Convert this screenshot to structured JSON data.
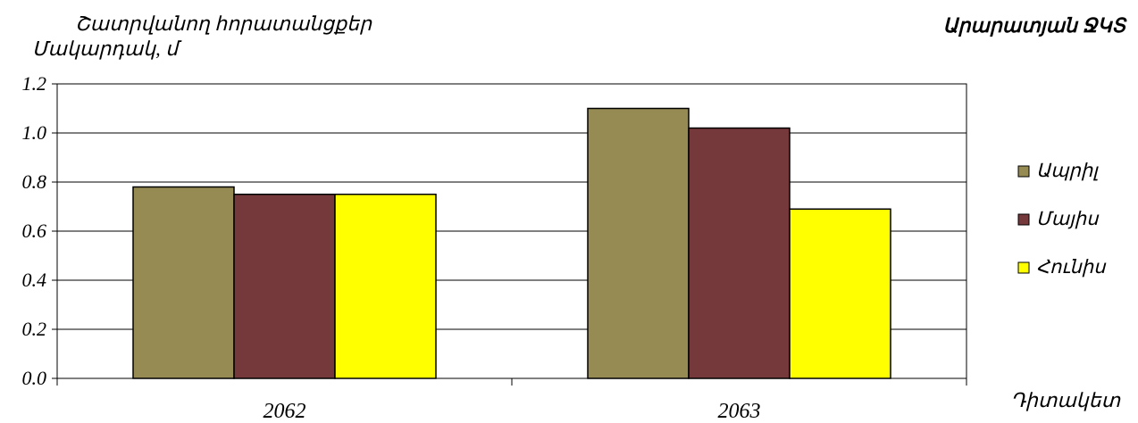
{
  "chart_data": {
    "type": "bar",
    "title": "Շատրվանող հորատանցքեր",
    "subtitle": "Արարատյան ՋԿՏ",
    "ylabel": "Մակարդակ, մ",
    "xlabel": "Դիտակետ",
    "categories": [
      "2062",
      "2063"
    ],
    "series": [
      {
        "name": "Ապրիլ",
        "values": [
          0.78,
          1.1
        ],
        "color": "#968b53"
      },
      {
        "name": "Մայիս",
        "values": [
          0.75,
          1.02
        ],
        "color": "#76393b"
      },
      {
        "name": "Հունիս",
        "values": [
          0.75,
          0.69
        ],
        "color": "#ffff00"
      }
    ],
    "ylim": [
      0,
      1.2
    ],
    "yticks": [
      "0.0",
      "0.2",
      "0.4",
      "0.6",
      "0.8",
      "1.0",
      "1.2"
    ],
    "grid": true,
    "legend": "right"
  }
}
